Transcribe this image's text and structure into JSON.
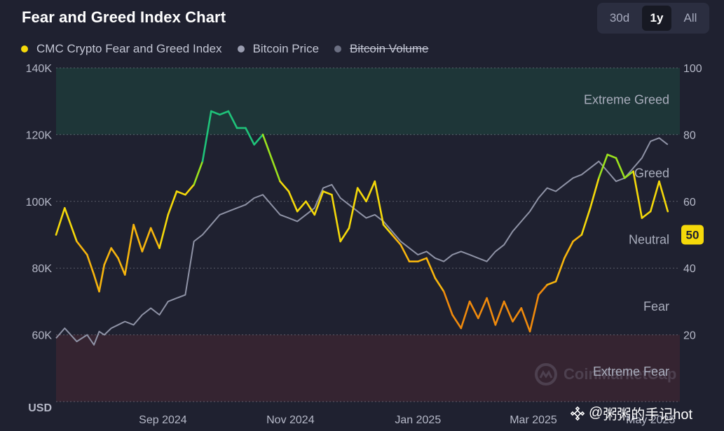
{
  "header": {
    "title": "Fear and Greed Index Chart",
    "range_buttons": [
      "30d",
      "1y",
      "All"
    ],
    "active_range": "1y"
  },
  "legend": [
    {
      "label": "CMC Crypto Fear and Greed Index",
      "color": "#f5d90a",
      "enabled": true
    },
    {
      "label": "Bitcoin Price",
      "color": "#9a9db0",
      "enabled": true
    },
    {
      "label": "Bitcoin Volume",
      "color": "#6b6f82",
      "enabled": false
    }
  ],
  "watermark": {
    "cmc_text": "CoinMarketCap",
    "social_text": "粥粥的手记hot"
  },
  "chart_data": {
    "type": "line",
    "title": "Fear and Greed Index Chart",
    "x_tick_labels": [
      "Sep 2024",
      "Nov 2024",
      "Jan 2025",
      "Mar 2025",
      "May 2025"
    ],
    "left_axis": {
      "ticks": [
        "140K",
        "120K",
        "100K",
        "80K",
        "60K"
      ],
      "unit_label": "USD",
      "range": [
        40000,
        140000
      ]
    },
    "right_axis": {
      "ticks": [
        "100",
        "80",
        "60",
        "40",
        "20"
      ],
      "range": [
        0,
        100
      ]
    },
    "zones": [
      {
        "label": "Extreme Greed",
        "from": 80,
        "to": 100,
        "color": "#1f3a3a"
      },
      {
        "label": "Greed",
        "from": 60,
        "to": 80
      },
      {
        "label": "Neutral",
        "from": 40,
        "to": 60
      },
      {
        "label": "Fear",
        "from": 20,
        "to": 40
      },
      {
        "label": "Extreme Fear",
        "from": 0,
        "to": 20,
        "color": "#3a2431"
      }
    ],
    "current_value": "50",
    "grid": true,
    "series": [
      {
        "name": "CMC Crypto Fear and Greed Index",
        "axis": "right",
        "color": "#f5d90a",
        "x": [
          0,
          5,
          12,
          18,
          22,
          25,
          28,
          32,
          36,
          40,
          45,
          50,
          55,
          60,
          65,
          70,
          75,
          80,
          85,
          90,
          95,
          100,
          105,
          110,
          115,
          120,
          125,
          130,
          135,
          140,
          145,
          150,
          155,
          160,
          165,
          170,
          175,
          180,
          185,
          190,
          195,
          200,
          205,
          210,
          215,
          220,
          225,
          230,
          235,
          240,
          245,
          250,
          255,
          260,
          265,
          270,
          275,
          280,
          285,
          290,
          295,
          300,
          305,
          310,
          315,
          320,
          325,
          330,
          335,
          340,
          345,
          350,
          355
        ],
        "values": [
          50,
          58,
          48,
          44,
          38,
          33,
          41,
          46,
          43,
          38,
          53,
          45,
          52,
          46,
          56,
          63,
          62,
          65,
          72,
          87,
          86,
          87,
          82,
          82,
          77,
          80,
          73,
          66,
          63,
          57,
          60,
          56,
          63,
          62,
          48,
          52,
          64,
          60,
          66,
          53,
          50,
          47,
          42,
          42,
          43,
          37,
          33,
          26,
          22,
          30,
          25,
          31,
          23,
          30,
          24,
          28,
          21,
          32,
          35,
          36,
          43,
          48,
          50,
          58,
          67,
          74,
          73,
          67,
          69,
          55,
          57,
          66,
          57
        ]
      },
      {
        "name": "Bitcoin Price",
        "axis": "left",
        "color": "#8f93a6",
        "x": [
          0,
          5,
          12,
          18,
          22,
          25,
          28,
          32,
          36,
          40,
          45,
          50,
          55,
          60,
          65,
          70,
          75,
          80,
          85,
          90,
          95,
          100,
          105,
          110,
          115,
          120,
          125,
          130,
          135,
          140,
          145,
          150,
          155,
          160,
          165,
          170,
          175,
          180,
          185,
          190,
          195,
          200,
          205,
          210,
          215,
          220,
          225,
          230,
          235,
          240,
          245,
          250,
          255,
          260,
          265,
          270,
          275,
          280,
          285,
          290,
          295,
          300,
          305,
          310,
          315,
          320,
          325,
          330,
          335,
          340,
          345,
          350,
          355
        ],
        "values": [
          59000,
          62000,
          58000,
          60000,
          57000,
          61000,
          60000,
          62000,
          63000,
          64000,
          63000,
          66000,
          68000,
          66000,
          70000,
          71000,
          72000,
          88000,
          90000,
          93000,
          96000,
          97000,
          98000,
          99000,
          101000,
          102000,
          99000,
          96000,
          95000,
          94000,
          96000,
          98000,
          104000,
          105000,
          101000,
          99000,
          97000,
          95000,
          96000,
          94000,
          91000,
          88000,
          86000,
          84000,
          85000,
          83000,
          82000,
          84000,
          85000,
          84000,
          83000,
          82000,
          85000,
          87000,
          91000,
          94000,
          97000,
          101000,
          104000,
          103000,
          105000,
          107000,
          108000,
          110000,
          112000,
          109000,
          106000,
          107000,
          110000,
          113000,
          118000,
          119000,
          117000
        ]
      }
    ]
  }
}
